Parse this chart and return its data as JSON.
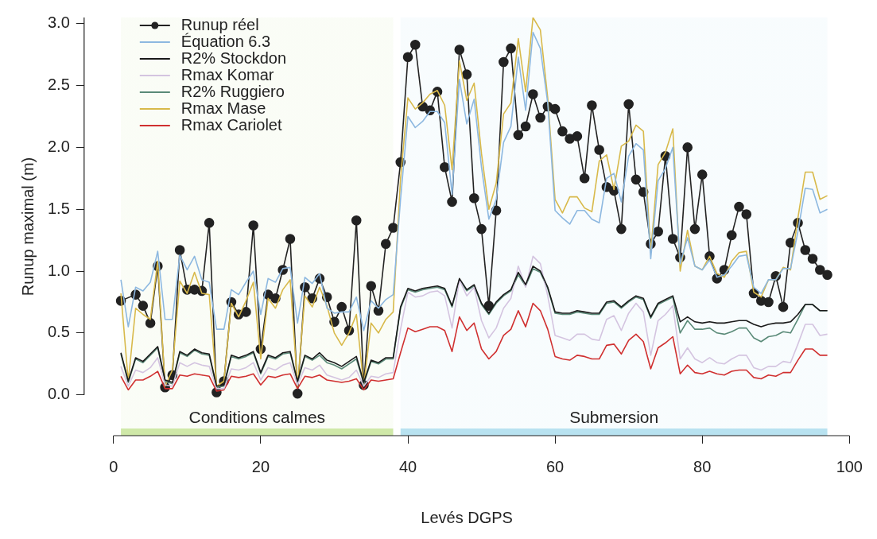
{
  "chart_data": {
    "type": "line",
    "xlabel": "Levés DGPS",
    "ylabel": "Runup maximal (m)",
    "legend": "top left",
    "grid": false,
    "x": [
      1,
      2,
      3,
      4,
      5,
      6,
      7,
      8,
      9,
      10,
      11,
      12,
      13,
      14,
      15,
      16,
      17,
      18,
      19,
      20,
      21,
      22,
      23,
      24,
      25,
      26,
      27,
      28,
      29,
      30,
      31,
      32,
      33,
      34,
      35,
      36,
      37,
      38,
      39,
      40,
      41,
      42,
      43,
      44,
      45,
      46,
      47,
      48,
      49,
      50,
      51,
      52,
      53,
      54,
      55,
      56,
      57,
      58,
      59,
      60,
      61,
      62,
      63,
      64,
      65,
      66,
      67,
      68,
      69,
      70,
      71,
      72,
      73,
      74,
      75,
      76,
      77,
      78,
      79,
      80,
      81,
      82,
      83,
      84,
      85,
      86,
      87,
      88,
      89,
      90,
      91,
      92,
      93,
      94,
      95,
      96,
      97
    ],
    "xlim": [
      -4,
      100
    ],
    "xticks": [
      0,
      20,
      40,
      60,
      80,
      100
    ],
    "ylim": [
      -0.33,
      3.05
    ],
    "yticks": [
      {
        "value": 0,
        "label": "0.0"
      },
      {
        "value": 0.5,
        "label": "0.5"
      },
      {
        "value": 1,
        "label": "1.0"
      },
      {
        "value": 1.5,
        "label": "1.5"
      },
      {
        "value": 2,
        "label": "2.0"
      },
      {
        "value": 2.5,
        "label": "2.5"
      },
      {
        "value": 3,
        "label": "3.0"
      }
    ],
    "bands": [
      {
        "axis": "x",
        "from": 1,
        "to": 38,
        "label": "Conditions calmes",
        "color": "#cfe8a8"
      },
      {
        "axis": "x",
        "from": 39,
        "to": 97,
        "label": "Submersion",
        "color": "#b8e2f0"
      }
    ],
    "series": [
      {
        "name": "Équation 6.3",
        "color": "#8db8e0",
        "marker": "none",
        "values": [
          0.93,
          0.55,
          0.87,
          0.84,
          0.91,
          1.16,
          0.61,
          0.61,
          1.13,
          1.01,
          1.12,
          0.93,
          0.91,
          0.53,
          0.53,
          0.85,
          0.81,
          0.91,
          1.0,
          0.65,
          0.94,
          0.91,
          1.02,
          1.03,
          0.58,
          0.95,
          0.9,
          0.98,
          0.7,
          0.66,
          0.67,
          0.67,
          0.79,
          0.52,
          0.76,
          0.7,
          0.77,
          0.81,
          1.58,
          2.25,
          2.16,
          2.21,
          2.29,
          2.29,
          2.2,
          1.62,
          2.55,
          2.19,
          2.39,
          1.84,
          1.42,
          1.58,
          2.04,
          2.17,
          2.73,
          2.3,
          2.93,
          2.8,
          2.36,
          1.49,
          1.43,
          1.38,
          1.49,
          1.49,
          1.42,
          1.39,
          1.75,
          1.79,
          1.56,
          1.93,
          2.03,
          1.98,
          1.1,
          1.73,
          1.83,
          2.0,
          1.06,
          1.27,
          1.04,
          1.01,
          1.09,
          0.95,
          0.97,
          1.04,
          1.12,
          1.13,
          0.87,
          0.82,
          0.93,
          0.93,
          1.02,
          1.02,
          1.32,
          1.67,
          1.66,
          1.47,
          1.5
        ]
      },
      {
        "name": "R2% Stockdon",
        "color": "#1a1a1a",
        "marker": "none",
        "values": [
          0.34,
          0.11,
          0.3,
          0.27,
          0.33,
          0.39,
          0.12,
          0.1,
          0.35,
          0.32,
          0.37,
          0.34,
          0.33,
          0.07,
          0.08,
          0.32,
          0.3,
          0.32,
          0.35,
          0.18,
          0.32,
          0.3,
          0.34,
          0.35,
          0.11,
          0.32,
          0.29,
          0.34,
          0.28,
          0.26,
          0.23,
          0.27,
          0.31,
          0.1,
          0.28,
          0.26,
          0.3,
          0.3,
          0.71,
          0.86,
          0.84,
          0.86,
          0.87,
          0.88,
          0.86,
          0.72,
          0.94,
          0.85,
          0.89,
          0.74,
          0.66,
          0.75,
          0.81,
          0.85,
          0.99,
          0.89,
          1.04,
          1.0,
          0.87,
          0.67,
          0.66,
          0.66,
          0.68,
          0.67,
          0.66,
          0.66,
          0.75,
          0.76,
          0.71,
          0.76,
          0.8,
          0.78,
          0.63,
          0.74,
          0.77,
          0.8,
          0.59,
          0.63,
          0.59,
          0.58,
          0.59,
          0.58,
          0.58,
          0.59,
          0.6,
          0.6,
          0.57,
          0.55,
          0.57,
          0.58,
          0.58,
          0.59,
          0.65,
          0.73,
          0.73,
          0.68,
          0.68
        ]
      },
      {
        "name": "Rmax Komar",
        "color": "#d4c4e0",
        "marker": "none",
        "values": [
          0.23,
          0.07,
          0.2,
          0.18,
          0.22,
          0.3,
          0.08,
          0.07,
          0.26,
          0.23,
          0.26,
          0.24,
          0.23,
          0.05,
          0.05,
          0.21,
          0.2,
          0.22,
          0.26,
          0.12,
          0.22,
          0.2,
          0.24,
          0.26,
          0.08,
          0.22,
          0.2,
          0.24,
          0.16,
          0.14,
          0.12,
          0.14,
          0.2,
          0.07,
          0.15,
          0.14,
          0.17,
          0.18,
          0.53,
          0.83,
          0.79,
          0.8,
          0.83,
          0.84,
          0.8,
          0.54,
          0.93,
          0.8,
          0.87,
          0.6,
          0.46,
          0.54,
          0.7,
          0.78,
          1.04,
          0.87,
          1.12,
          1.06,
          0.8,
          0.48,
          0.46,
          0.44,
          0.49,
          0.49,
          0.45,
          0.44,
          0.61,
          0.64,
          0.52,
          0.66,
          0.74,
          0.67,
          0.32,
          0.6,
          0.65,
          0.72,
          0.29,
          0.38,
          0.29,
          0.26,
          0.3,
          0.26,
          0.25,
          0.29,
          0.32,
          0.32,
          0.22,
          0.2,
          0.23,
          0.23,
          0.27,
          0.26,
          0.41,
          0.57,
          0.57,
          0.48,
          0.49
        ]
      },
      {
        "name": "R2% Ruggiero",
        "color": "#5a8a78",
        "marker": "none",
        "values": [
          0.33,
          0.1,
          0.29,
          0.26,
          0.32,
          0.38,
          0.11,
          0.09,
          0.34,
          0.31,
          0.36,
          0.33,
          0.32,
          0.06,
          0.07,
          0.31,
          0.29,
          0.31,
          0.34,
          0.17,
          0.31,
          0.29,
          0.33,
          0.34,
          0.1,
          0.31,
          0.28,
          0.32,
          0.26,
          0.24,
          0.21,
          0.25,
          0.29,
          0.09,
          0.27,
          0.25,
          0.29,
          0.29,
          0.7,
          0.85,
          0.83,
          0.85,
          0.86,
          0.87,
          0.85,
          0.71,
          0.93,
          0.84,
          0.88,
          0.73,
          0.65,
          0.74,
          0.8,
          0.84,
          0.97,
          0.88,
          1.02,
          0.99,
          0.86,
          0.66,
          0.65,
          0.65,
          0.67,
          0.66,
          0.65,
          0.65,
          0.74,
          0.75,
          0.7,
          0.75,
          0.79,
          0.77,
          0.62,
          0.73,
          0.76,
          0.79,
          0.5,
          0.6,
          0.53,
          0.53,
          0.54,
          0.5,
          0.49,
          0.51,
          0.54,
          0.54,
          0.46,
          0.43,
          0.47,
          0.48,
          0.51,
          0.5,
          0.61,
          0.73,
          0.73,
          0.68,
          0.68
        ]
      },
      {
        "name": "Rmax Mase",
        "color": "#d8b94a",
        "marker": "none",
        "values": [
          0.82,
          0.11,
          0.7,
          0.65,
          0.61,
          1.08,
          0.07,
          0.2,
          0.92,
          0.82,
          0.99,
          0.82,
          0.81,
          0.07,
          0.11,
          0.74,
          0.63,
          0.76,
          0.91,
          0.29,
          0.78,
          0.7,
          0.85,
          0.93,
          0.07,
          0.8,
          0.71,
          0.87,
          0.72,
          0.5,
          0.4,
          0.5,
          0.65,
          0.07,
          0.58,
          0.5,
          0.61,
          0.67,
          1.75,
          2.4,
          2.31,
          2.36,
          2.43,
          2.46,
          2.34,
          1.82,
          2.7,
          2.38,
          2.52,
          1.95,
          1.5,
          1.71,
          2.27,
          2.36,
          2.88,
          2.45,
          3.05,
          2.95,
          2.4,
          1.58,
          1.47,
          1.6,
          1.6,
          1.51,
          1.48,
          1.89,
          1.94,
          1.66,
          2.01,
          2.05,
          2.18,
          2.13,
          1.15,
          1.86,
          1.96,
          2.15,
          1.0,
          1.33,
          1.04,
          1.01,
          1.12,
          0.98,
          0.95,
          1.08,
          1.15,
          1.16,
          0.83,
          0.79,
          0.93,
          0.93,
          1.03,
          1.01,
          1.43,
          1.8,
          1.8,
          1.58,
          1.61
        ]
      },
      {
        "name": "Rmax Cariolet",
        "color": "#d03030",
        "marker": "none",
        "values": [
          0.15,
          0.04,
          0.12,
          0.12,
          0.15,
          0.19,
          0.05,
          0.05,
          0.16,
          0.15,
          0.17,
          0.16,
          0.15,
          0.03,
          0.04,
          0.15,
          0.14,
          0.15,
          0.17,
          0.08,
          0.15,
          0.14,
          0.16,
          0.17,
          0.05,
          0.15,
          0.14,
          0.16,
          0.12,
          0.11,
          0.1,
          0.11,
          0.13,
          0.04,
          0.12,
          0.11,
          0.12,
          0.13,
          0.34,
          0.54,
          0.51,
          0.53,
          0.55,
          0.55,
          0.52,
          0.35,
          0.63,
          0.52,
          0.58,
          0.37,
          0.29,
          0.35,
          0.48,
          0.53,
          0.68,
          0.55,
          0.74,
          0.68,
          0.53,
          0.31,
          0.29,
          0.28,
          0.32,
          0.31,
          0.29,
          0.29,
          0.4,
          0.41,
          0.33,
          0.44,
          0.49,
          0.43,
          0.21,
          0.38,
          0.42,
          0.47,
          0.17,
          0.24,
          0.18,
          0.17,
          0.19,
          0.17,
          0.16,
          0.19,
          0.2,
          0.2,
          0.14,
          0.13,
          0.16,
          0.15,
          0.18,
          0.18,
          0.28,
          0.37,
          0.37,
          0.32,
          0.32
        ]
      },
      {
        "name": "Runup réel",
        "color": "#222222",
        "marker": "circle",
        "values": [
          0.76,
          null,
          0.81,
          0.72,
          0.58,
          1.04,
          0.06,
          0.16,
          1.17,
          0.85,
          0.85,
          0.84,
          1.39,
          0.02,
          0.11,
          0.75,
          0.65,
          0.67,
          1.37,
          0.37,
          0.81,
          0.78,
          1.01,
          1.26,
          0.01,
          0.87,
          0.78,
          0.94,
          0.79,
          0.59,
          0.71,
          0.52,
          1.41,
          0.08,
          0.88,
          0.68,
          1.22,
          1.35,
          1.88,
          2.73,
          2.83,
          2.33,
          2.3,
          2.45,
          1.84,
          1.56,
          2.79,
          2.59,
          1.59,
          1.34,
          0.72,
          1.49,
          2.69,
          2.8,
          2.1,
          2.17,
          2.43,
          2.24,
          2.33,
          2.31,
          2.13,
          2.07,
          2.09,
          1.75,
          2.34,
          1.98,
          1.68,
          1.65,
          1.34,
          2.35,
          1.74,
          1.64,
          1.22,
          1.32,
          1.93,
          1.26,
          1.11,
          2.0,
          1.34,
          1.78,
          1.12,
          0.94,
          1.01,
          1.29,
          1.52,
          1.46,
          0.82,
          0.76,
          0.75,
          0.96,
          0.71,
          1.23,
          1.39,
          1.17,
          1.1,
          1.01,
          0.97
        ]
      }
    ]
  }
}
